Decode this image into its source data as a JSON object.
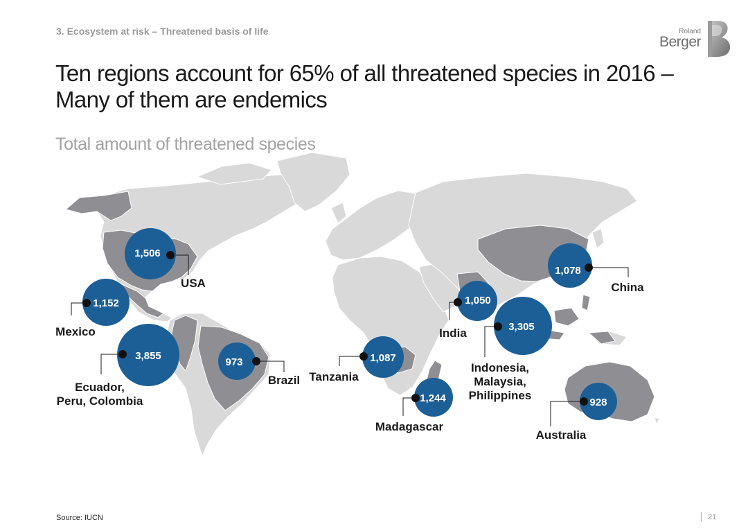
{
  "header": {
    "section": "3. Ecosystem at risk – Threatened basis of life",
    "title_line1": "Ten regions account for 65% of all threatened species in 2016 –",
    "title_line2": "Many of them are endemics",
    "subtitle": "Total amount of threatened species"
  },
  "logo": {
    "top_word": "Roland",
    "bottom_word": "Berger",
    "mark": "B"
  },
  "colors": {
    "bubble": "#1c5f97",
    "land": "#d9d9d9",
    "highlight_land": "#8f8f93",
    "border": "#ffffff",
    "leader": "#1a1a1a"
  },
  "regions": [
    {
      "id": "usa",
      "name_lines": [
        "USA"
      ],
      "value": "1,506"
    },
    {
      "id": "mexico",
      "name_lines": [
        "Mexico"
      ],
      "value": "1,152"
    },
    {
      "id": "andes",
      "name_lines": [
        "Ecuador,",
        "Peru, Colombia"
      ],
      "value": "3,855"
    },
    {
      "id": "brazil",
      "name_lines": [
        "Brazil"
      ],
      "value": "973"
    },
    {
      "id": "tanzania",
      "name_lines": [
        "Tanzania"
      ],
      "value": "1,087"
    },
    {
      "id": "madagascar",
      "name_lines": [
        "Madagascar"
      ],
      "value": "1,244"
    },
    {
      "id": "india",
      "name_lines": [
        "India"
      ],
      "value": "1,050"
    },
    {
      "id": "sea",
      "name_lines": [
        "Indonesia,",
        "Malaysia,",
        "Philippines"
      ],
      "value": "3,305"
    },
    {
      "id": "china",
      "name_lines": [
        "China"
      ],
      "value": "1,078"
    },
    {
      "id": "australia",
      "name_lines": [
        "Australia"
      ],
      "value": "928"
    }
  ],
  "footer": {
    "source": "Source: IUCN",
    "page": "21"
  }
}
